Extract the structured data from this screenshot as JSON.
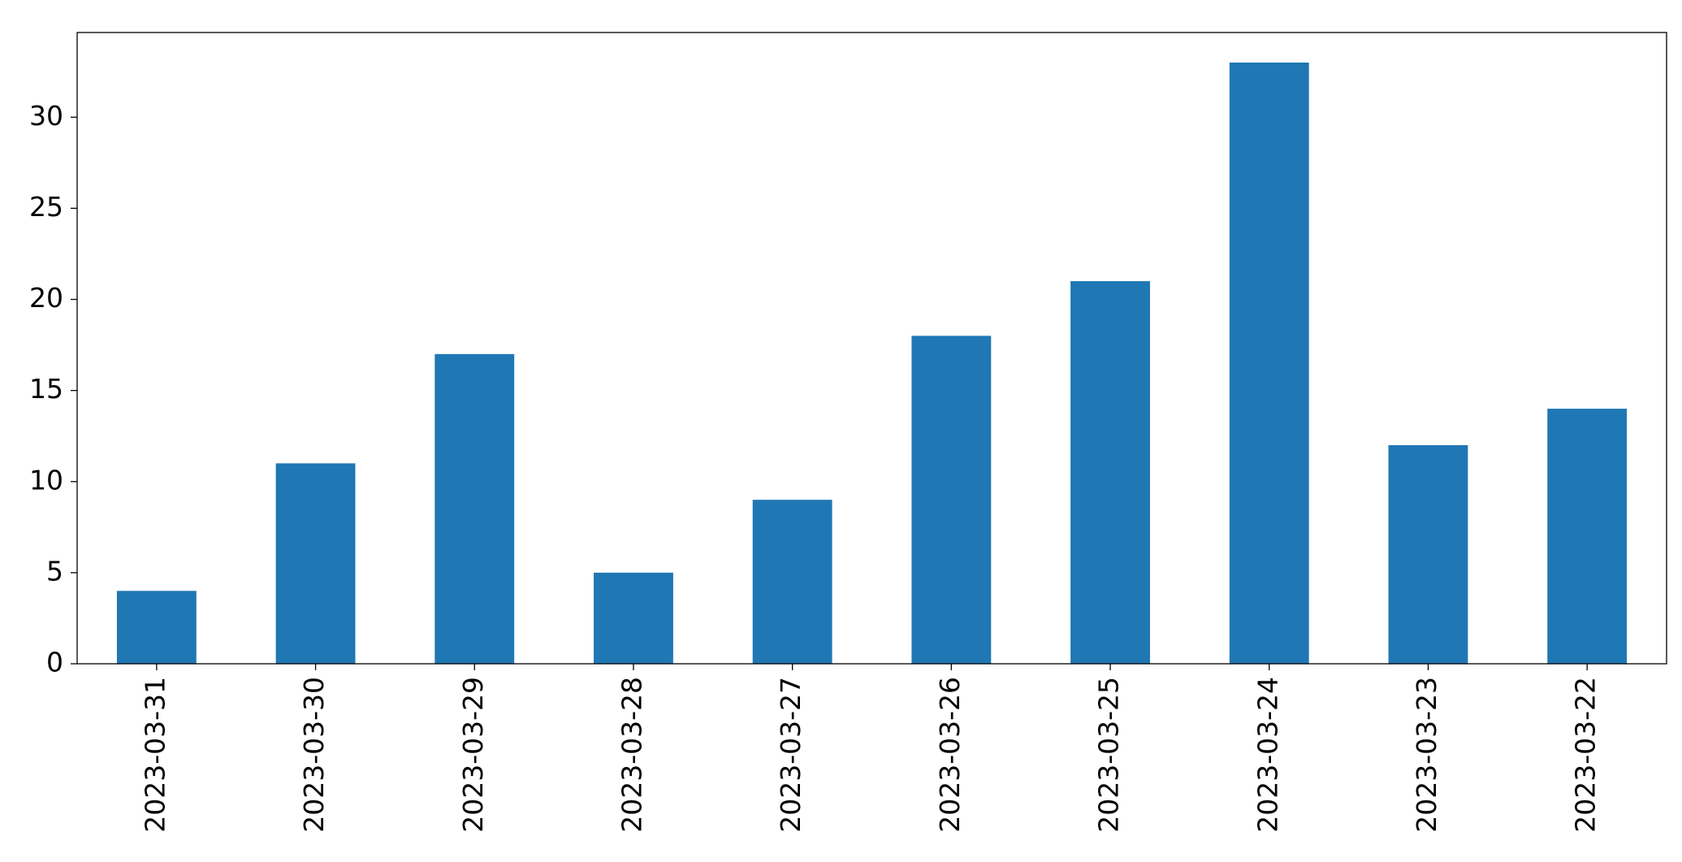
{
  "chart_data": {
    "type": "bar",
    "categories": [
      "2023-03-31",
      "2023-03-30",
      "2023-03-29",
      "2023-03-28",
      "2023-03-27",
      "2023-03-26",
      "2023-03-25",
      "2023-03-24",
      "2023-03-23",
      "2023-03-22"
    ],
    "values": [
      4,
      11,
      17,
      5,
      9,
      18,
      21,
      33,
      12,
      14
    ],
    "color": "#1f77b4",
    "ylim": [
      0,
      34.65
    ],
    "yticks": [
      0,
      5,
      10,
      15,
      20,
      25,
      30
    ],
    "grid": false
  }
}
